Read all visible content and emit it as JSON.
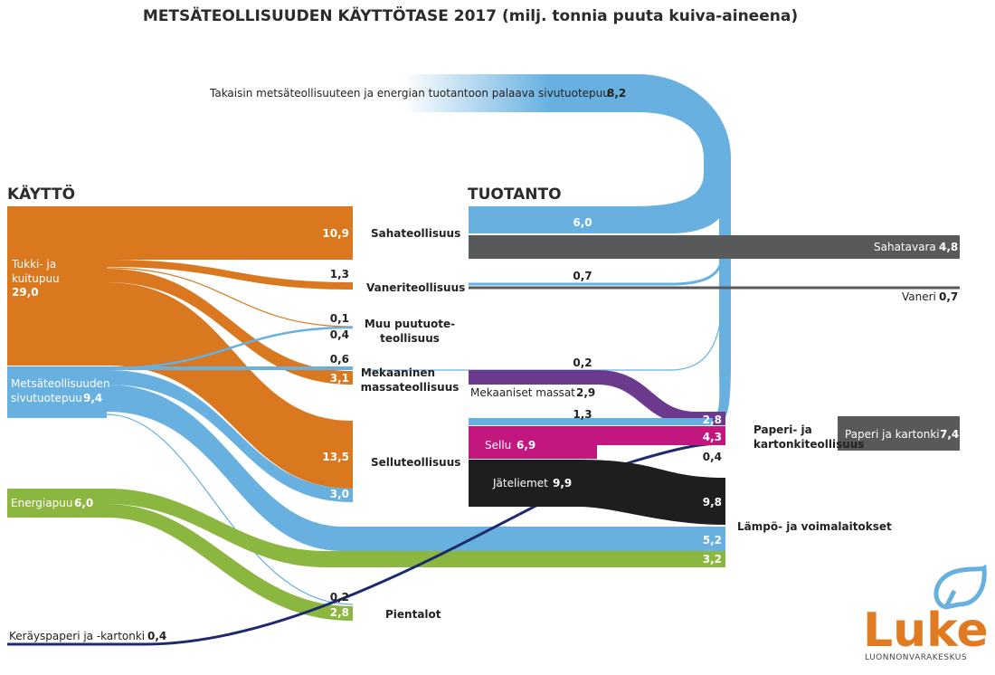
{
  "title": "METSÄTEOLLISUUDEN KÄYTTÖTASE 2017 (milj. tonnia puuta kuiva-aineena)",
  "headers": {
    "use": "KÄYTTÖ",
    "production": "TUOTANTO"
  },
  "colors": {
    "wood": "#d9781f",
    "byproduct": "#67b0e0",
    "energy": "#8bb63f",
    "paper": "#1d2b6e",
    "mechanical": "#6b3a8c",
    "pulp": "#c2177f",
    "liquor": "#1e1e1e",
    "product": "#58595b"
  },
  "sources": {
    "wood": {
      "label": "Tukki- ja kuitupuu",
      "value": "29,0"
    },
    "byproduct": {
      "label": "Metsäteollisuuden sivutuotepuu",
      "value": "9,4"
    },
    "energy": {
      "label": "Energiapuu",
      "value": "6,0"
    },
    "recycled": {
      "label": "Keräyspaperi ja -kartonki",
      "value": "0,4"
    }
  },
  "return_flow": {
    "label": "Takaisin metsäteollisuuteen ja energian tuotantoon palaava sivutuotepuu",
    "value": "8,2"
  },
  "processes": {
    "sawmill": "Sahateollisuus",
    "plywood": "Vaneriteollisuus",
    "other": "Muu puutuoteteollisuus",
    "mechanical": "Mekaaninen massateollisuus",
    "pulp": "Selluteollisuus",
    "paper": "Paperi- ja kartonkiteollisuus",
    "power": "Lämpö- ja voimalaitokset",
    "houses": "Pientalot"
  },
  "flow_values": {
    "wood_sawmill": "10,9",
    "wood_plywood": "1,3",
    "wood_other": "0,1",
    "byp_other": "0,4",
    "byp_mech": "0,6",
    "wood_mech": "3,1",
    "wood_pulp": "13,5",
    "byp_pulp": "3,0",
    "byp_power": "5,2",
    "energy_power": "3,2",
    "byp_houses": "0,2",
    "energy_houses": "2,8",
    "saw_byproduct": "6,0",
    "ply_byproduct": "0,7",
    "other_byproduct": "0,2",
    "pulp_byproduct": "1,3",
    "mech_to_paper": "2,8",
    "pulp_to_paper": "4,3",
    "recycled_to_paper": "0,4",
    "liquor_to_power": "9,8"
  },
  "products": {
    "sawn": {
      "label": "Sahatavara",
      "value": "4,8"
    },
    "plywood": {
      "label": "Vaneri",
      "value": "0,7"
    },
    "mech_pulp": {
      "label": "Mekaaniset massat",
      "value": "2,9"
    },
    "pulp": {
      "label": "Sellu",
      "value": "6,9"
    },
    "liquor": {
      "label": "Jäteliemet",
      "value": "9,9"
    },
    "paper": {
      "label": "Paperi ja kartonki",
      "value": "7,4"
    }
  },
  "logo": {
    "name": "Luke",
    "subtitle": "LUONNONVARAKESKUS"
  }
}
